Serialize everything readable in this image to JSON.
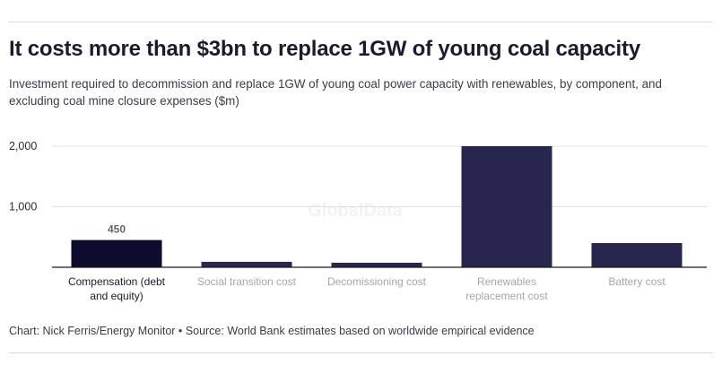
{
  "header": {
    "title": "It costs more than $3bn to replace 1GW of young coal capacity",
    "subtitle": "Investment required to decommission and replace 1GW of young coal power capacity with renewables, by component, and excluding coal mine closure expenses ($m)"
  },
  "footer": {
    "credit": "Chart: Nick Ferris/Energy Monitor • Source: World Bank estimates based on worldwide empirical evidence"
  },
  "watermark": "GlobalData",
  "colors": {
    "highlight_bar": "#0d0b2e",
    "bar": "#27264e",
    "gridline": "#e0e0e0",
    "axis": "#1a1a1a",
    "highlight_label": "#1a1a2e",
    "muted_label": "#a6a6a6"
  },
  "chart_data": {
    "type": "bar",
    "title": "It costs more than $3bn to replace 1GW of young coal capacity",
    "ylabel": "$m",
    "xlabel": "",
    "ylim": [
      0,
      2000
    ],
    "yticks": [
      1000,
      2000
    ],
    "ytick_labels": [
      "1,000",
      "2,000"
    ],
    "grid": true,
    "categories": [
      [
        "Compensation (debt",
        "and equity)"
      ],
      [
        "Social transition cost"
      ],
      [
        "Decomissioning cost"
      ],
      [
        "Renewables",
        "replacement cost"
      ],
      [
        "Battery cost"
      ]
    ],
    "values": [
      450,
      90,
      75,
      2000,
      400
    ],
    "highlight_index": 0,
    "data_labels": [
      {
        "index": 0,
        "text": "450"
      }
    ]
  }
}
